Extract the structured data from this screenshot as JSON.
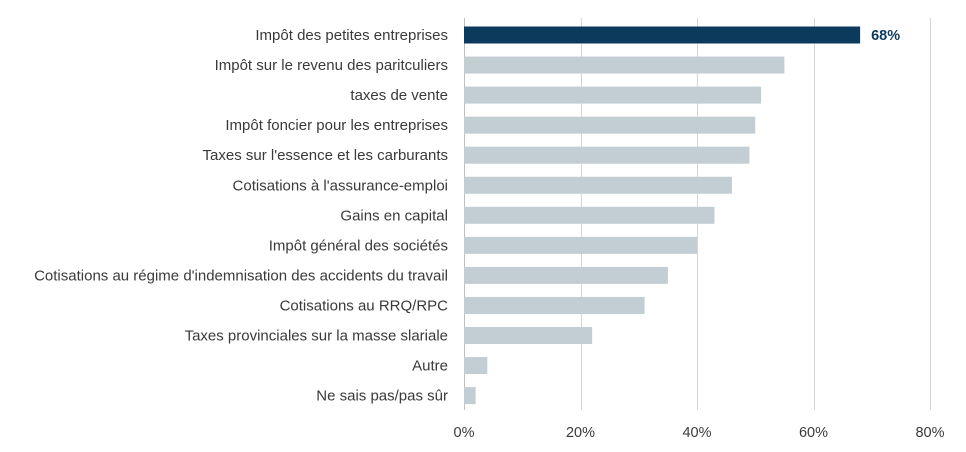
{
  "chart_data": {
    "type": "bar",
    "orientation": "horizontal",
    "categories": [
      "Impôt des petites entreprises",
      "Impôt sur le revenu des paritculiers",
      "taxes de vente",
      "Impôt foncier pour les entreprises",
      "Taxes sur l'essence et les carburants",
      "Cotisations à l'assurance-emploi",
      "Gains en capital",
      "Impôt général des sociétés",
      "Cotisations au régime d'indemnisation des accidents du travail",
      "Cotisations au RRQ/RPC",
      "Taxes provinciales sur la masse slariale",
      "Autre",
      "Ne sais pas/pas sûr"
    ],
    "values": [
      68,
      55,
      51,
      50,
      49,
      46,
      43,
      40,
      35,
      31,
      22,
      4,
      2
    ],
    "unit": "%",
    "xlim": [
      0,
      80
    ],
    "xticks": [
      "0%",
      "20%",
      "40%",
      "60%",
      "80%"
    ],
    "grid": true,
    "highlight_index": 0,
    "data_labels": [
      {
        "index": 0,
        "text": "68%"
      }
    ],
    "colors": {
      "highlight": "#0b3a5c",
      "default": "#c2cdd4",
      "highlight_label": "#0b3a5c"
    }
  }
}
